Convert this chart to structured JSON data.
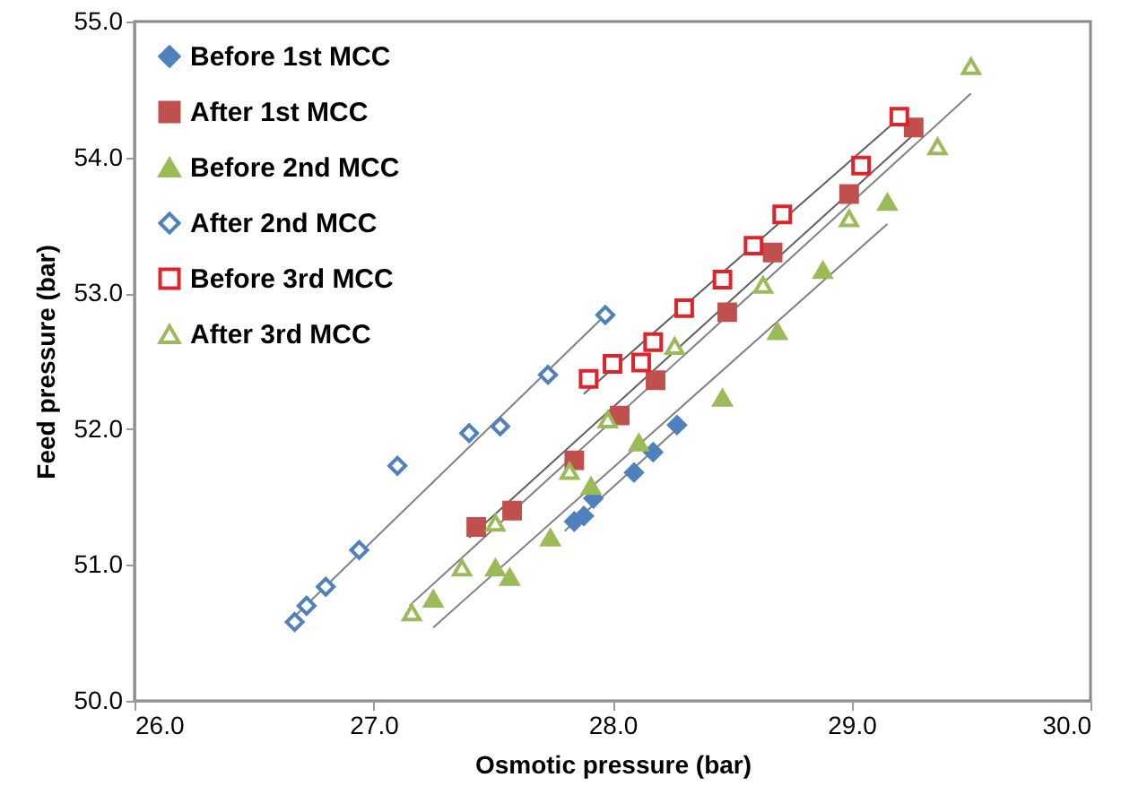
{
  "chart_data": {
    "type": "scatter",
    "xlabel": "Osmotic pressure (bar)",
    "ylabel": "Feed pressure (bar)",
    "xlim": [
      26,
      30
    ],
    "xticks": [
      {
        "value": 26,
        "label": "26.0"
      },
      {
        "value": 27,
        "label": "27.0"
      },
      {
        "value": 28,
        "label": "28.0"
      },
      {
        "value": 29,
        "label": "29.0"
      },
      {
        "value": 30,
        "label": "30.0"
      }
    ],
    "ylim": [
      50,
      55
    ],
    "yticks": [
      {
        "value": 50,
        "label": "50.0"
      },
      {
        "value": 51,
        "label": "51.0"
      },
      {
        "value": 52,
        "label": "52.0"
      },
      {
        "value": 53,
        "label": "53.0"
      },
      {
        "value": 54,
        "label": "54.0"
      },
      {
        "value": 55,
        "label": "55.0"
      }
    ],
    "grid": false,
    "legend": "top left",
    "series": [
      {
        "name": "Before 1st MCC",
        "color": "#4f81bd",
        "marker": "diamond",
        "x": [
          27.84,
          27.88,
          27.92,
          28.09,
          28.17,
          28.27
        ],
        "values": [
          51.32,
          51.36,
          51.49,
          51.68,
          51.83,
          52.03
        ]
      },
      {
        "name": "After 1st MCC",
        "color": "#c0504d",
        "marker": "square",
        "x": [
          27.43,
          27.58,
          27.84,
          28.03,
          28.18,
          28.48,
          28.67,
          28.99,
          29.26
        ],
        "values": [
          51.28,
          51.4,
          51.77,
          52.1,
          52.36,
          52.86,
          53.3,
          53.73,
          54.22
        ]
      },
      {
        "name": "Before 2nd MCC",
        "color": "#9bbb59",
        "marker": "triangle",
        "x": [
          27.25,
          27.51,
          27.57,
          27.74,
          27.91,
          28.11,
          28.46,
          28.69,
          28.88,
          29.15
        ],
        "values": [
          50.75,
          50.98,
          50.91,
          51.2,
          51.58,
          51.9,
          52.23,
          52.72,
          53.17,
          53.67
        ]
      },
      {
        "name": "After 2nd MCC",
        "color": "#4f81bd",
        "marker": "diamond",
        "x": [
          26.67,
          26.72,
          26.8,
          26.94,
          27.1,
          27.4,
          27.53,
          27.73,
          27.97
        ],
        "values": [
          50.58,
          50.7,
          50.84,
          51.11,
          51.73,
          51.97,
          52.02,
          52.4,
          52.84
        ]
      },
      {
        "name": "Before 3rd MCC",
        "color": "#e0232b",
        "marker": "square",
        "x": [
          27.9,
          28.0,
          28.12,
          28.17,
          28.3,
          28.46,
          28.59,
          28.71,
          29.04,
          29.2
        ],
        "values": [
          52.37,
          52.48,
          52.49,
          52.64,
          52.89,
          53.1,
          53.35,
          53.58,
          53.94,
          54.3
        ]
      },
      {
        "name": "After 3rd MCC",
        "color": "#9bbb59",
        "marker": "triangle",
        "x": [
          27.16,
          27.37,
          27.51,
          27.82,
          27.98,
          28.26,
          28.63,
          28.99,
          29.36,
          29.5
        ],
        "values": [
          50.65,
          50.98,
          51.31,
          51.69,
          52.07,
          52.61,
          53.06,
          53.55,
          54.08,
          54.67
        ]
      },
      {
        "type": "line",
        "color": "#808080",
        "x": [
          26.64,
          27.97
        ],
        "values": [
          50.57,
          52.84
        ]
      },
      {
        "type": "line",
        "color": "#606060",
        "x": [
          27.88,
          29.22
        ],
        "values": [
          52.26,
          54.32
        ]
      },
      {
        "type": "line",
        "color": "#606060",
        "x": [
          27.4,
          29.28
        ],
        "values": [
          51.2,
          54.2
        ]
      },
      {
        "type": "line",
        "color": "#808080",
        "x": [
          27.15,
          29.5
        ],
        "values": [
          50.7,
          54.47
        ]
      },
      {
        "type": "line",
        "color": "#808080",
        "x": [
          27.25,
          29.15
        ],
        "values": [
          50.54,
          53.51
        ]
      },
      {
        "type": "line",
        "color": "#808080",
        "x": [
          27.8,
          28.3
        ],
        "values": [
          51.25,
          52.05
        ]
      }
    ]
  }
}
